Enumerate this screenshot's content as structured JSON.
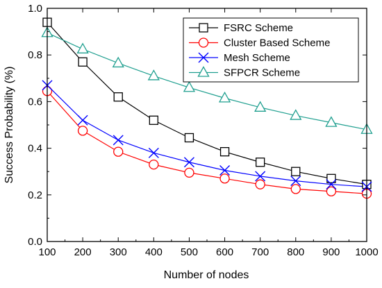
{
  "chart_data": {
    "type": "line",
    "xlabel": "Number of nodes",
    "ylabel": "Success Probability (%)",
    "xlim": [
      100,
      1000
    ],
    "ylim": [
      0.0,
      1.0
    ],
    "x": [
      100,
      200,
      300,
      400,
      500,
      600,
      700,
      800,
      900,
      1000
    ],
    "x_ticks": [
      "100",
      "200",
      "300",
      "400",
      "500",
      "600",
      "700",
      "800",
      "900",
      "1000"
    ],
    "y_ticks": [
      "0.0",
      "0.2",
      "0.4",
      "0.6",
      "0.8",
      "1.0"
    ],
    "y_tick_values": [
      0.0,
      0.2,
      0.4,
      0.6,
      0.8,
      1.0
    ],
    "legend_position": "top-right",
    "grid": false,
    "series": [
      {
        "name": "FSRC Scheme",
        "color": "#000000",
        "marker": "square",
        "values": [
          0.94,
          0.77,
          0.62,
          0.52,
          0.445,
          0.385,
          0.34,
          0.3,
          0.27,
          0.245
        ]
      },
      {
        "name": "Cluster Based Scheme",
        "color": "#ff0000",
        "marker": "circle",
        "values": [
          0.645,
          0.475,
          0.385,
          0.33,
          0.295,
          0.27,
          0.245,
          0.225,
          0.215,
          0.205
        ]
      },
      {
        "name": "Mesh Scheme",
        "color": "#0000ff",
        "marker": "x",
        "values": [
          0.67,
          0.52,
          0.435,
          0.38,
          0.34,
          0.305,
          0.28,
          0.26,
          0.245,
          0.235
        ]
      },
      {
        "name": "SFPCR Scheme",
        "color": "#1f9f8f",
        "marker": "triangle",
        "values": [
          0.895,
          0.825,
          0.765,
          0.71,
          0.66,
          0.615,
          0.575,
          0.54,
          0.51,
          0.48
        ]
      }
    ]
  }
}
